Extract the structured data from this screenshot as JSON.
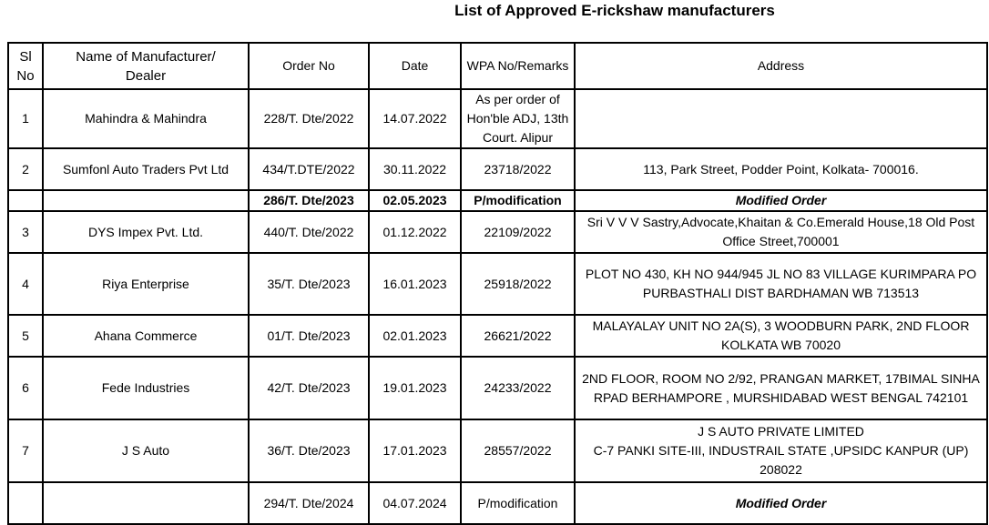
{
  "title": "List of Approved E-rickshaw manufacturers",
  "headers": [
    "Sl No",
    "Name of Manufacturer/ Dealer",
    "Order No",
    "Date",
    "WPA No/Remarks",
    "Address"
  ],
  "rows": [
    {
      "sl": "1",
      "name": "Mahindra & Mahindra",
      "order": "228/T. Dte/2022",
      "date": "14.07.2022",
      "wpa": "As per order of Hon'ble ADJ, 13th Court. Alipur",
      "address": "",
      "style": ""
    },
    {
      "sl": "2",
      "name": "Sumfonl Auto Traders Pvt Ltd",
      "order": "434/T.DTE/2022",
      "date": "30.11.2022",
      "wpa": "23718/2022",
      "address": "113, Park Street, Podder Point, Kolkata- 700016.",
      "style": ""
    },
    {
      "sl": "",
      "name": "",
      "order": "286/T. Dte/2023",
      "date": "02.05.2023",
      "wpa": "P/modification",
      "address": "Modified Order",
      "style": "bold"
    },
    {
      "sl": "3",
      "name": "DYS Impex Pvt. Ltd.",
      "order": "440/T. Dte/2022",
      "date": "01.12.2022",
      "wpa": "22109/2022",
      "address": "Sri V V V Sastry,Advocate,Khaitan & Co.Emerald House,18 Old Post Office Street,700001",
      "style": ""
    },
    {
      "sl": "4",
      "name": "Riya Enterprise",
      "order": "35/T. Dte/2023",
      "date": "16.01.2023",
      "wpa": "25918/2022",
      "address": "PLOT NO 430, KH NO 944/945 JL NO 83 VILLAGE KURIMPARA PO PURBASTHALI DIST BARDHAMAN WB 713513",
      "style": ""
    },
    {
      "sl": "5",
      "name": "Ahana Commerce",
      "order": "01/T. Dte/2023",
      "date": "02.01.2023",
      "wpa": "26621/2022",
      "address": "MALAYALAY UNIT NO 2A(S), 3 WOODBURN PARK, 2ND FLOOR KOLKATA WB 70020",
      "style": ""
    },
    {
      "sl": "6",
      "name": "Fede Industries",
      "order": "42/T. Dte/2023",
      "date": "19.01.2023",
      "wpa": "24233/2022",
      "address": "2ND FLOOR, ROOM NO 2/92, PRANGAN MARKET, 17BIMAL SINHA RPAD BERHAMPORE , MURSHIDABAD WEST BENGAL 742101",
      "style": ""
    },
    {
      "sl": "7",
      "name": "J S Auto",
      "order": "36/T. Dte/2023",
      "date": "17.01.2023",
      "wpa": "28557/2022",
      "address_lines": [
        "J S AUTO PRIVATE LIMITED",
        "C-7 PANKI SITE-III, INDUSTRAIL STATE ,UPSIDC KANPUR (UP) 208022"
      ],
      "style": ""
    },
    {
      "sl": "",
      "name": "",
      "order": "294/T. Dte/2024",
      "date": "04.07.2024",
      "wpa": "P/modification",
      "address": "Modified Order",
      "style": "modified"
    }
  ]
}
